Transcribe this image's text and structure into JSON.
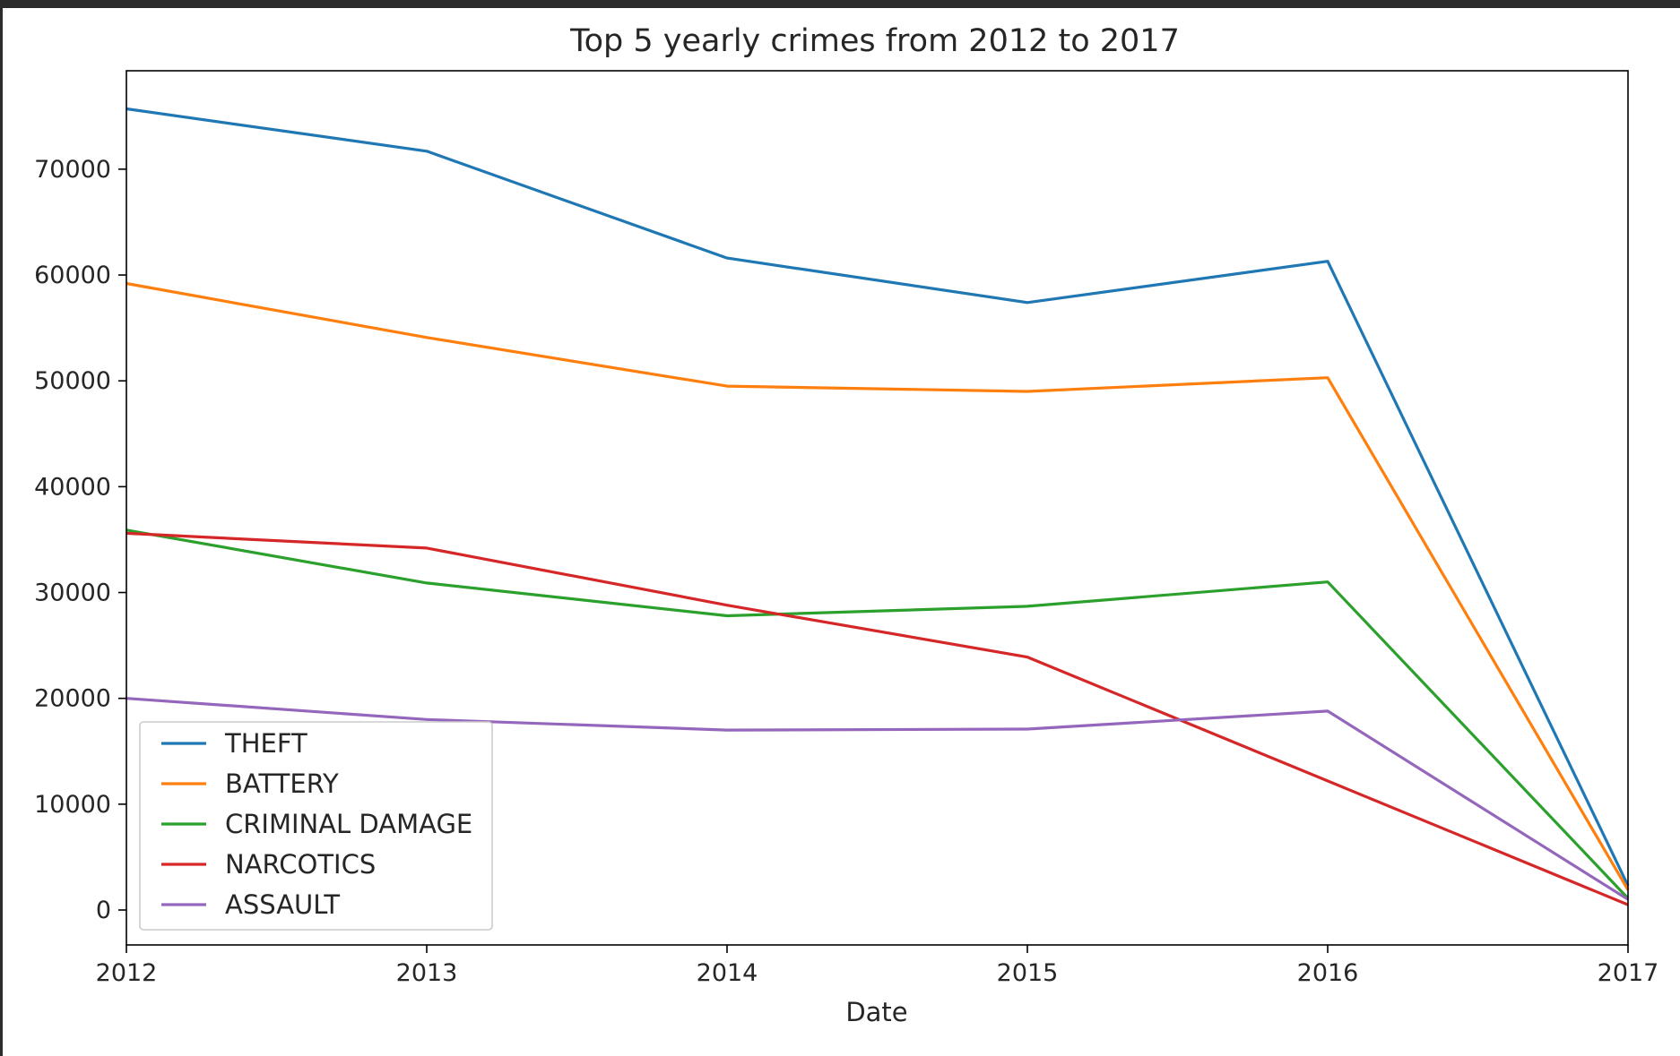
{
  "chart_data": {
    "type": "line",
    "title": "Top 5 yearly crimes from 2012 to 2017",
    "xlabel": "Date",
    "ylabel": "",
    "x": [
      2012,
      2013,
      2014,
      2015,
      2016,
      2017
    ],
    "x_tick_labels": [
      "2012",
      "2013",
      "2014",
      "2015",
      "2016",
      "2017"
    ],
    "xlim": [
      2012,
      2017
    ],
    "ylim": [
      -3300,
      79300
    ],
    "y_ticks": [
      0,
      10000,
      20000,
      30000,
      40000,
      50000,
      60000,
      70000
    ],
    "y_tick_labels": [
      "0",
      "10000",
      "20000",
      "30000",
      "40000",
      "50000",
      "60000",
      "70000"
    ],
    "grid": false,
    "legend_placement": "lower-left",
    "series": [
      {
        "name": "THEFT",
        "color": "#1f77b4",
        "values": [
          75700,
          71700,
          61600,
          57400,
          61300,
          2300
        ]
      },
      {
        "name": "BATTERY",
        "color": "#ff7f0e",
        "values": [
          59200,
          54100,
          49500,
          49000,
          50300,
          1900
        ]
      },
      {
        "name": "CRIMINAL DAMAGE",
        "color": "#2ca02c",
        "values": [
          35900,
          30900,
          27800,
          28700,
          31000,
          1100
        ]
      },
      {
        "name": "NARCOTICS",
        "color": "#d62728",
        "values": [
          35600,
          34200,
          28800,
          23900,
          12200,
          500
        ]
      },
      {
        "name": "ASSAULT",
        "color": "#9467bd",
        "values": [
          20000,
          18000,
          17000,
          17100,
          18800,
          1000
        ]
      }
    ]
  }
}
